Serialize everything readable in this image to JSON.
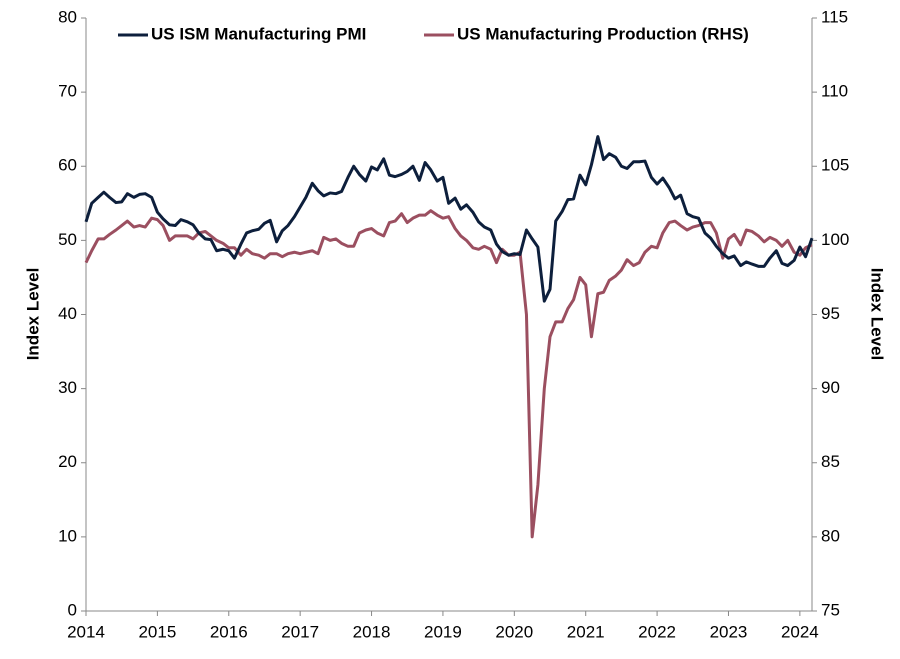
{
  "chart_data": {
    "type": "line",
    "x": [
      2014,
      2014.08,
      2014.17,
      2014.25,
      2014.33,
      2014.42,
      2014.5,
      2014.58,
      2014.67,
      2014.75,
      2014.83,
      2014.92,
      2015,
      2015.08,
      2015.17,
      2015.25,
      2015.33,
      2015.42,
      2015.5,
      2015.58,
      2015.67,
      2015.75,
      2015.83,
      2015.92,
      2016,
      2016.08,
      2016.17,
      2016.25,
      2016.33,
      2016.42,
      2016.5,
      2016.58,
      2016.67,
      2016.75,
      2016.83,
      2016.92,
      2017,
      2017.08,
      2017.17,
      2017.25,
      2017.33,
      2017.42,
      2017.5,
      2017.58,
      2017.67,
      2017.75,
      2017.83,
      2017.92,
      2018,
      2018.08,
      2018.17,
      2018.25,
      2018.33,
      2018.42,
      2018.5,
      2018.58,
      2018.67,
      2018.75,
      2018.83,
      2018.92,
      2019,
      2019.08,
      2019.17,
      2019.25,
      2019.33,
      2019.42,
      2019.5,
      2019.58,
      2019.67,
      2019.75,
      2019.83,
      2019.92,
      2020,
      2020.08,
      2020.17,
      2020.25,
      2020.33,
      2020.42,
      2020.5,
      2020.58,
      2020.67,
      2020.75,
      2020.83,
      2020.92,
      2021,
      2021.08,
      2021.17,
      2021.25,
      2021.33,
      2021.42,
      2021.5,
      2021.58,
      2021.67,
      2021.75,
      2021.83,
      2021.92,
      2022,
      2022.08,
      2022.17,
      2022.25,
      2022.33,
      2022.42,
      2022.5,
      2022.58,
      2022.67,
      2022.75,
      2022.83,
      2022.92,
      2023,
      2023.08,
      2023.17,
      2023.25,
      2023.33,
      2023.42,
      2023.5,
      2023.58,
      2023.67,
      2023.75,
      2023.83,
      2023.92,
      2024,
      2024.08,
      2024.17
    ],
    "series": [
      {
        "name": "US ISM Manufacturing PMI",
        "color": "#0d1f3c",
        "values": [
          52.5,
          55,
          55.8,
          56.5,
          55.8,
          55.1,
          55.2,
          56.3,
          55.8,
          56.2,
          56.3,
          55.8,
          53.8,
          52.9,
          52.1,
          52.0,
          52.8,
          52.5,
          52.1,
          51.0,
          50.2,
          50.1,
          48.6,
          48.8,
          48.6,
          47.6,
          49.5,
          51.0,
          51.3,
          51.5,
          52.3,
          52.7,
          49.8,
          51.3,
          52.0,
          53.2,
          54.5,
          55.8,
          57.7,
          56.7,
          56.0,
          56.4,
          56.3,
          56.6,
          58.5,
          60.0,
          58.9,
          58.0,
          59.9,
          59.5,
          61.0,
          58.8,
          58.6,
          58.9,
          59.3,
          60.0,
          58.1,
          60.5,
          59.5,
          58.0,
          58.5,
          55.0,
          55.7,
          54.2,
          54.8,
          53.8,
          52.5,
          51.8,
          51.4,
          49.5,
          48.5,
          48.0,
          48.2,
          48.1,
          51.4,
          50.2,
          49.1,
          41.8,
          43.4,
          52.6,
          53.9,
          55.5,
          55.6,
          58.8,
          57.5,
          60.2,
          64.0,
          60.9,
          61.7,
          61.2,
          60.0,
          59.7,
          60.6,
          60.6,
          60.7,
          58.5,
          57.6,
          58.4,
          57.1,
          55.6,
          56.1,
          53.6,
          53.2,
          53.0,
          51.0,
          50.3,
          49.2,
          48.2,
          47.6,
          47.9,
          46.6,
          47.1,
          46.8,
          46.5,
          46.5,
          47.6,
          48.6,
          46.9,
          46.6,
          47.3,
          49.1,
          47.8,
          50.3
        ]
      },
      {
        "name": "US Manufacturing Production (RHS)",
        "color": "#9b4f60",
        "axis": "y2",
        "values": [
          98.5,
          99.3,
          100.1,
          100.1,
          100.4,
          100.7,
          101.0,
          101.3,
          100.9,
          101.0,
          100.9,
          101.5,
          101.4,
          101.0,
          100.0,
          100.3,
          100.3,
          100.3,
          100.1,
          100.5,
          100.6,
          100.3,
          100.0,
          99.8,
          99.5,
          99.5,
          99.0,
          99.4,
          99.1,
          99.0,
          98.8,
          99.1,
          99.1,
          98.9,
          99.1,
          99.2,
          99.1,
          99.2,
          99.3,
          99.1,
          100.2,
          100.0,
          100.1,
          99.8,
          99.6,
          99.6,
          100.5,
          100.7,
          100.8,
          100.5,
          100.3,
          101.2,
          101.3,
          101.8,
          101.2,
          101.5,
          101.7,
          101.7,
          102.0,
          101.7,
          101.5,
          101.6,
          100.8,
          100.3,
          100.0,
          99.5,
          99.4,
          99.6,
          99.4,
          98.5,
          99.4,
          99.0,
          99.0,
          99.2,
          95.0,
          80.0,
          83.5,
          90.0,
          93.5,
          94.5,
          94.5,
          95.4,
          96.0,
          97.5,
          97.0,
          93.5,
          96.4,
          96.5,
          97.3,
          97.6,
          98.0,
          98.7,
          98.3,
          98.5,
          99.2,
          99.6,
          99.5,
          100.5,
          101.2,
          101.3,
          101.0,
          100.7,
          100.9,
          101.0,
          101.2,
          101.2,
          100.5,
          98.8,
          100.1,
          100.4,
          99.7,
          100.7,
          100.6,
          100.3,
          99.9,
          100.2,
          100.0,
          99.6,
          100.0,
          99.2,
          99.0,
          99.5,
          99.7
        ]
      }
    ],
    "ylabel": "Index Level",
    "y2label": "Index Level",
    "xlim": [
      2014,
      2024.17
    ],
    "xticks": [
      2014,
      2015,
      2016,
      2017,
      2018,
      2019,
      2020,
      2021,
      2022,
      2023,
      2024
    ],
    "ylim": [
      0,
      80
    ],
    "yticks": [
      0,
      10,
      20,
      30,
      40,
      50,
      60,
      70,
      80
    ],
    "y2lim": [
      75,
      115
    ],
    "y2ticks": [
      75,
      80,
      85,
      90,
      95,
      100,
      105,
      110,
      115
    ],
    "grid": false
  }
}
